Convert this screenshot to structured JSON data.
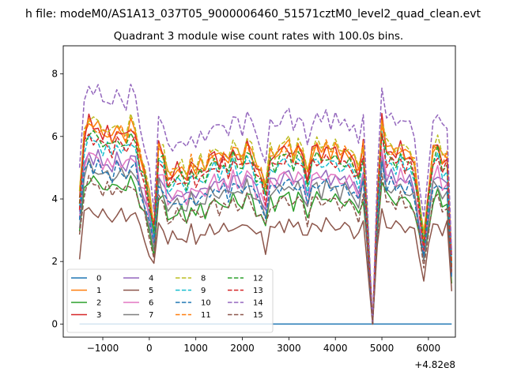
{
  "figure": {
    "suptitle": "h file: modeM0/AS1A13_037T05_9000006460_51571cztM0_level2_quad_clean.evt",
    "offset_label": "+4.82e8"
  },
  "chart_data": {
    "type": "line",
    "title": "Quadrant 3 module wise count rates with 100.0s bins.",
    "xlabel": "",
    "ylabel": "",
    "x_offset": 482000000,
    "xlim": [
      -1850,
      6580
    ],
    "ylim": [
      -0.42,
      8.9
    ],
    "xticks": [
      -1000,
      0,
      1000,
      2000,
      3000,
      4000,
      5000,
      6000
    ],
    "xtick_labels": [
      "−1000",
      "0",
      "1000",
      "2000",
      "3000",
      "4000",
      "5000",
      "6000"
    ],
    "yticks": [
      0,
      2,
      4,
      6,
      8
    ],
    "ytick_labels": [
      "0",
      "2",
      "4",
      "6",
      "8"
    ],
    "x_start": -1500,
    "x_step": 100,
    "grid": false,
    "legend_placement": "lower-left",
    "legend_columns": 4,
    "profile": [
      0.62,
      0.93,
      1.0,
      0.96,
      0.97,
      0.93,
      0.94,
      0.9,
      0.96,
      0.94,
      0.91,
      0.97,
      0.95,
      0.82,
      0.74,
      0.62,
      0.48,
      0.87,
      0.83,
      0.72,
      0.74,
      0.76,
      0.75,
      0.72,
      0.8,
      0.74,
      0.78,
      0.76,
      0.82,
      0.83,
      0.8,
      0.84,
      0.79,
      0.86,
      0.83,
      0.81,
      0.88,
      0.84,
      0.77,
      0.75,
      0.66,
      0.84,
      0.82,
      0.85,
      0.86,
      0.88,
      0.82,
      0.87,
      0.83,
      0.73,
      0.85,
      0.87,
      0.83,
      0.88,
      0.84,
      0.86,
      0.82,
      0.85,
      0.83,
      0.8,
      0.75,
      0.88,
      0.45,
      0.0,
      0.62,
      1.0,
      0.85,
      0.86,
      0.83,
      0.87,
      0.82,
      0.84,
      0.78,
      0.6,
      0.41,
      0.65,
      0.85,
      0.88,
      0.8,
      0.83,
      0.3
    ],
    "series": [
      {
        "name": "0",
        "color": "#1f77b4",
        "dash": "solid",
        "constant": 0.0
      },
      {
        "name": "1",
        "color": "#ff7f0e",
        "dash": "solid",
        "level": 6.55,
        "phase": 1.3
      },
      {
        "name": "2",
        "color": "#2ca02c",
        "dash": "solid",
        "level": 4.7,
        "phase": 2.1
      },
      {
        "name": "3",
        "color": "#d62728",
        "dash": "solid",
        "level": 6.5,
        "phase": 3.7
      },
      {
        "name": "4",
        "color": "#9467bd",
        "dash": "solid",
        "level": 5.5,
        "phase": 0.6
      },
      {
        "name": "5",
        "color": "#8c564b",
        "dash": "solid",
        "level": 3.7,
        "phase": 5.2
      },
      {
        "name": "6",
        "color": "#e377c2",
        "dash": "solid",
        "level": 5.5,
        "phase": 2.9
      },
      {
        "name": "7",
        "color": "#7f7f7f",
        "dash": "solid",
        "level": 5.1,
        "phase": 4.4
      },
      {
        "name": "8",
        "color": "#bcbd22",
        "dash": "dashed",
        "level": 6.7,
        "phase": 1.9
      },
      {
        "name": "9",
        "color": "#17becf",
        "dash": "dashed",
        "level": 6.0,
        "phase": 3.1
      },
      {
        "name": "10",
        "color": "#1f77b4",
        "dash": "dashed",
        "level": 5.2,
        "phase": 0.3
      },
      {
        "name": "11",
        "color": "#ff7f0e",
        "dash": "dashed",
        "level": 6.5,
        "phase": 4.8
      },
      {
        "name": "12",
        "color": "#2ca02c",
        "dash": "dashed",
        "level": 6.2,
        "phase": 2.4
      },
      {
        "name": "13",
        "color": "#d62728",
        "dash": "dashed",
        "level": 6.1,
        "phase": 5.9
      },
      {
        "name": "14",
        "color": "#9467bd",
        "dash": "dashed",
        "level": 7.7,
        "phase": 1.1
      },
      {
        "name": "15",
        "color": "#8c564b",
        "dash": "dashed",
        "level": 4.6,
        "phase": 3.4
      }
    ]
  }
}
